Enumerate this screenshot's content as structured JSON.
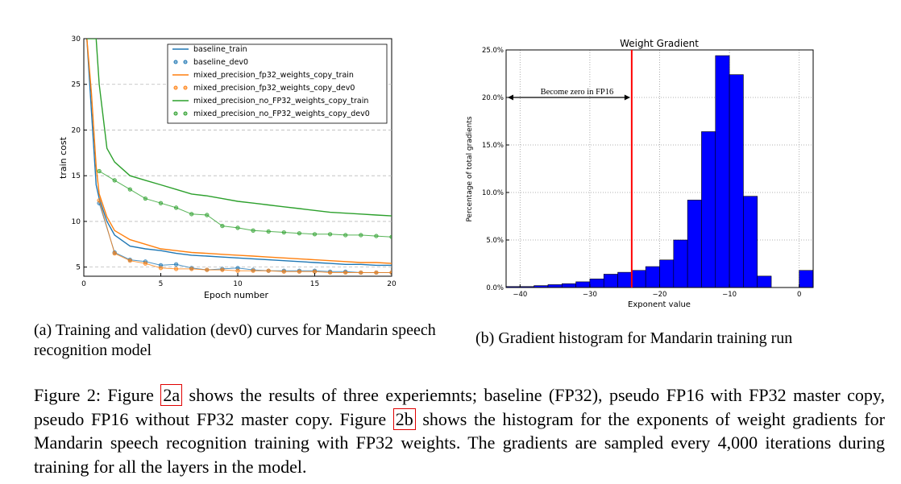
{
  "charts": [
    {
      "type": "line",
      "xlabel": "Epoch number",
      "ylabel": "train cost",
      "xlim": [
        0,
        20
      ],
      "ylim": [
        4,
        30
      ],
      "xticks": [
        0,
        5,
        10,
        15,
        20
      ],
      "yticks": [
        5,
        10,
        15,
        20,
        25,
        30
      ],
      "grid": "horizontal dashed",
      "legend_position": "top-right",
      "legend": [
        {
          "label": "baseline_train",
          "style": "line",
          "color": "#1f77b4"
        },
        {
          "label": "baseline_dev0",
          "style": "dots",
          "color": "#1f77b4"
        },
        {
          "label": "mixed_precision_fp32_weights_copy_train",
          "style": "line",
          "color": "#ff7f0e"
        },
        {
          "label": "mixed_precision_fp32_weights_copy_dev0",
          "style": "dots",
          "color": "#ff7f0e"
        },
        {
          "label": "mixed_precision_no_FP32_weights_copy_train",
          "style": "line",
          "color": "#2ca02c"
        },
        {
          "label": "mixed_precision_no_FP32_weights_copy_dev0",
          "style": "dots",
          "color": "#2ca02c"
        }
      ],
      "series": [
        {
          "name": "baseline_train",
          "color": "#1f77b4",
          "x": [
            0.2,
            0.5,
            0.8,
            1,
            1.5,
            2,
            3,
            4,
            5,
            6,
            7,
            8,
            9,
            10,
            11,
            12,
            13,
            14,
            15,
            16,
            17,
            18,
            19,
            20
          ],
          "y": [
            30,
            22,
            14,
            12.5,
            10,
            8.5,
            7.3,
            7,
            6.8,
            6.5,
            6.3,
            6.2,
            6.1,
            6,
            5.9,
            5.8,
            5.7,
            5.6,
            5.5,
            5.4,
            5.3,
            5.3,
            5.2,
            5.2
          ]
        },
        {
          "name": "baseline_dev0",
          "color": "#1f77b4",
          "x": [
            1,
            2,
            3,
            4,
            5,
            6,
            7,
            8,
            9,
            10,
            11,
            12,
            13,
            14,
            15,
            16,
            17,
            18,
            19,
            20
          ],
          "y": [
            12,
            6.6,
            5.8,
            5.6,
            5.2,
            5.3,
            4.9,
            4.7,
            4.8,
            4.9,
            4.7,
            4.6,
            4.6,
            4.6,
            4.6,
            4.5,
            4.5,
            4.4,
            4.4,
            4.4
          ]
        },
        {
          "name": "mixed_precision_fp32_weights_copy_train",
          "color": "#ff7f0e",
          "x": [
            0.2,
            0.5,
            0.8,
            1,
            1.5,
            2,
            3,
            4,
            5,
            6,
            7,
            8,
            9,
            10,
            11,
            12,
            13,
            14,
            15,
            16,
            17,
            18,
            19,
            20
          ],
          "y": [
            30,
            24,
            16,
            13,
            10.5,
            9,
            8,
            7.5,
            7,
            6.8,
            6.6,
            6.5,
            6.4,
            6.3,
            6.2,
            6.1,
            6,
            5.9,
            5.8,
            5.7,
            5.6,
            5.5,
            5.5,
            5.4
          ]
        },
        {
          "name": "mixed_precision_fp32_weights_copy_dev0",
          "color": "#ff7f0e",
          "x": [
            1,
            2,
            3,
            4,
            5,
            6,
            7,
            8,
            9,
            10,
            11,
            12,
            13,
            14,
            15,
            16,
            17,
            18,
            19,
            20
          ],
          "y": [
            12.3,
            6.5,
            5.7,
            5.4,
            4.9,
            4.8,
            4.8,
            4.7,
            4.7,
            4.6,
            4.6,
            4.6,
            4.5,
            4.5,
            4.5,
            4.4,
            4.4,
            4.4,
            4.4,
            4.4
          ]
        },
        {
          "name": "mixed_precision_no_FP32_weights_copy_train",
          "color": "#2ca02c",
          "x": [
            0.2,
            0.5,
            0.8,
            1,
            1.5,
            2,
            3,
            4,
            5,
            6,
            7,
            8,
            9,
            10,
            11,
            12,
            13,
            14,
            15,
            16,
            17,
            18,
            19,
            20
          ],
          "y": [
            30,
            30,
            30,
            25,
            18,
            16.5,
            15,
            14.5,
            14,
            13.5,
            13,
            12.8,
            12.5,
            12.2,
            12,
            11.8,
            11.6,
            11.4,
            11.2,
            11,
            10.9,
            10.8,
            10.7,
            10.6
          ]
        },
        {
          "name": "mixed_precision_no_FP32_weights_copy_dev0",
          "color": "#2ca02c",
          "x": [
            1,
            2,
            3,
            4,
            5,
            6,
            7,
            8,
            9,
            10,
            11,
            12,
            13,
            14,
            15,
            16,
            17,
            18,
            19,
            20
          ],
          "y": [
            15.5,
            14.5,
            13.5,
            12.5,
            12,
            11.5,
            10.8,
            10.7,
            9.5,
            9.3,
            9,
            8.9,
            8.8,
            8.7,
            8.6,
            8.6,
            8.5,
            8.5,
            8.4,
            8.3
          ]
        }
      ]
    },
    {
      "type": "bar",
      "title": "Weight Gradient",
      "xlabel": "Exponent value",
      "ylabel": "Percentage of total gradients",
      "xlim": [
        -42,
        2
      ],
      "ylim": [
        0,
        25
      ],
      "xticks": [
        -40,
        -30,
        -20,
        -10,
        0
      ],
      "yticks": [
        0,
        5,
        10,
        15,
        20,
        25
      ],
      "ytick_labels": [
        "0.0%",
        "5.0%",
        "10.0%",
        "15.0%",
        "20.0%",
        "25.0%"
      ],
      "grid": "dotted",
      "bar_color": "#0000ff",
      "bin_width": 2,
      "bin_left_edges": [
        -42,
        -40,
        -38,
        -36,
        -34,
        -32,
        -30,
        -28,
        -26,
        -24,
        -22,
        -20,
        -18,
        -16,
        -14,
        -12,
        -10,
        -8,
        -6,
        -4,
        -2,
        0
      ],
      "values": [
        0.1,
        0.1,
        0.2,
        0.3,
        0.4,
        0.6,
        0.9,
        1.4,
        1.6,
        1.8,
        2.2,
        2.9,
        5.0,
        9.2,
        16.4,
        24.4,
        22.4,
        9.6,
        1.2,
        0.0,
        0.0,
        1.8
      ],
      "threshold_line": {
        "x": -24,
        "color": "#ff0000"
      },
      "annotation": "Become zero in FP16"
    }
  ],
  "subcaptions": {
    "a": "(a) Training and validation (dev0) curves for Mandarin speech recognition model",
    "b": "(b) Gradient histogram for Mandarin training run"
  },
  "caption": {
    "p1": "Figure 2: Figure ",
    "ref_a": "2a",
    "p2": " shows the results of three experiemnts; baseline (FP32), pseudo FP16 with FP32 master copy, pseudo FP16 without FP32 master copy. Figure ",
    "ref_b": "2b",
    "p3": " shows the histogram for the exponents of weight gradients for Mandarin speech recognition training with FP32 weights. The gradients are sampled every 4,000 iterations during training for all the layers in the model."
  }
}
